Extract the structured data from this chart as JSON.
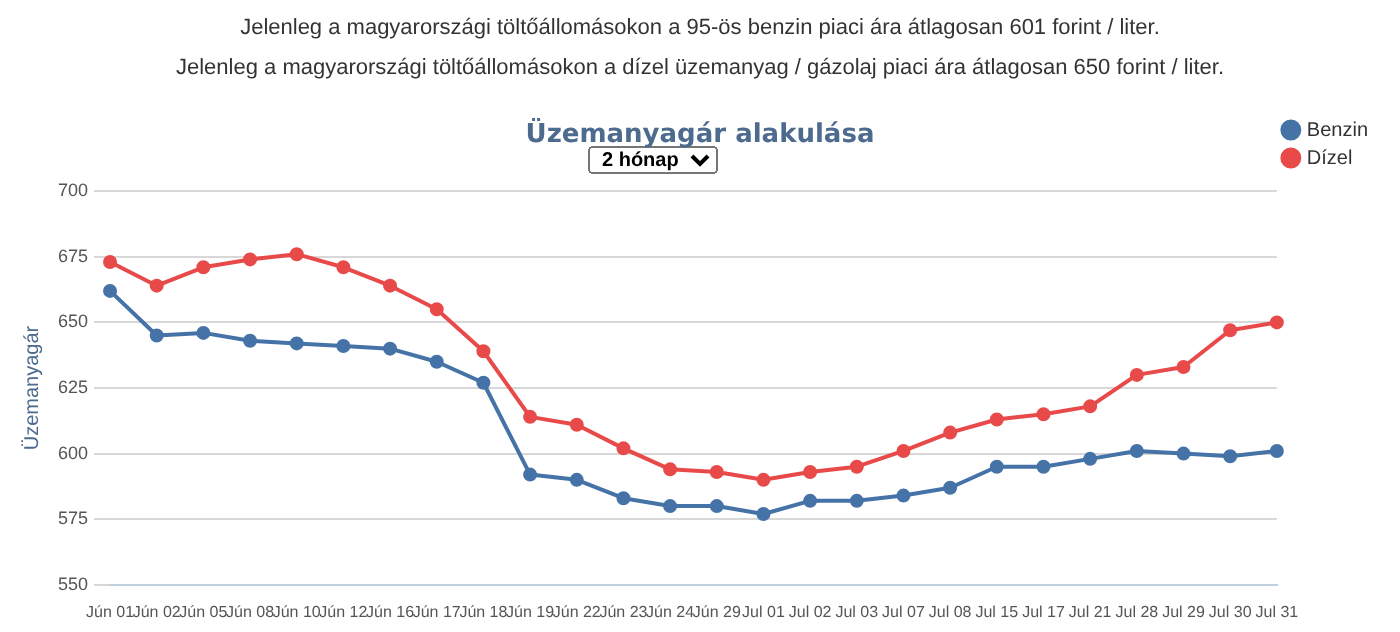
{
  "chart_data": {
    "type": "line",
    "title": "Üzemanyagár alakulása",
    "ylabel": "Üzemanyagár",
    "annotations": [
      "Jelenleg a magyarországi töltőállomásokon a 95-ös benzin piaci ára átlagosan 601 forint / liter.",
      "Jelenleg a magyarországi töltőállomásokon a dízel üzemanyag / gázolaj piaci ára átlagosan 650 forint / liter.",
      "2 hónap"
    ],
    "categories": [
      "Jún 01",
      "Jún 02",
      "Jún 05",
      "Jún 08",
      "Jún 10",
      "Jún 12",
      "Jún 16",
      "Jún 17",
      "Jún 18",
      "Jún 19",
      "Jún 22",
      "Jún 23",
      "Jún 24",
      "Jún 29",
      "Jul 01",
      "Jul 02",
      "Jul 03",
      "Jul 07",
      "Jul 08",
      "Jul 15",
      "Jul 17",
      "Jul 21",
      "Jul 28",
      "Jul 29",
      "Jul 30",
      "Jul 31"
    ],
    "series": [
      {
        "name": "Benzin",
        "color": "#4572a7",
        "values": [
          662,
          645,
          646,
          643,
          642,
          641,
          640,
          635,
          627,
          592,
          590,
          583,
          580,
          580,
          577,
          582,
          582,
          584,
          587,
          595,
          595,
          598,
          601,
          600,
          599,
          601
        ]
      },
      {
        "name": "Dízel",
        "color": "#e84a4a",
        "values": [
          673,
          664,
          671,
          674,
          676,
          671,
          664,
          655,
          639,
          614,
          611,
          602,
          594,
          593,
          590,
          593,
          595,
          601,
          608,
          613,
          615,
          618,
          630,
          633,
          647,
          650
        ]
      }
    ],
    "ylim": [
      550,
      700
    ],
    "yticks": [
      550,
      575,
      600,
      625,
      650,
      675,
      700
    ],
    "grid": "y",
    "legend": "right",
    "marker": "circle",
    "line_style": "solid"
  }
}
